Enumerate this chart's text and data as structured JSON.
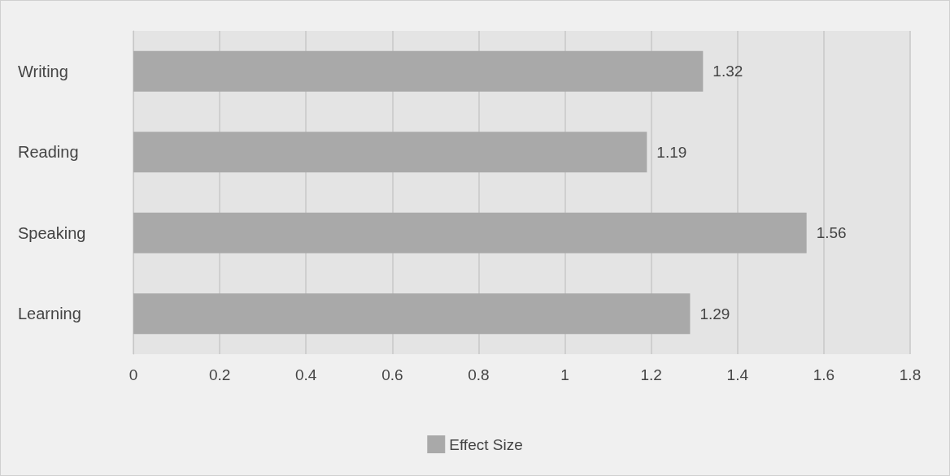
{
  "chart_data": {
    "type": "bar",
    "orientation": "horizontal",
    "categories": [
      "Writing",
      "Reading",
      "Speaking",
      "Learning"
    ],
    "series": [
      {
        "name": "Effect Size",
        "color": "#a9a9a9",
        "values": [
          1.32,
          1.19,
          1.56,
          1.29
        ]
      }
    ],
    "xlim": [
      0,
      1.8
    ],
    "xticks": [
      0,
      0.2,
      0.4,
      0.6,
      0.8,
      1,
      1.2,
      1.4,
      1.6,
      1.8
    ],
    "grid": "x",
    "legend": "bottom",
    "data_labels": true
  }
}
